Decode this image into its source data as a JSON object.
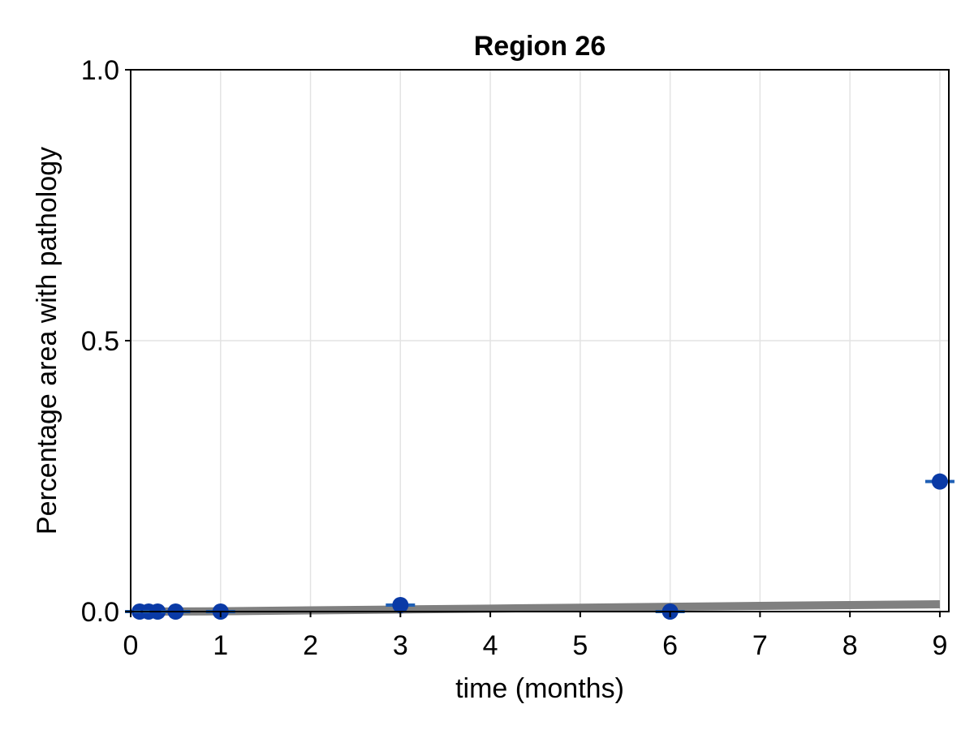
{
  "chart_data": {
    "type": "scatter",
    "title": "Region 26",
    "xlabel": "time (months)",
    "ylabel": "Percentage area with pathology",
    "xlim": [
      0,
      9.1
    ],
    "ylim": [
      0,
      1
    ],
    "x_ticks": [
      0,
      1,
      2,
      3,
      4,
      5,
      6,
      7,
      8,
      9
    ],
    "x_tick_labels": [
      "0",
      "1",
      "2",
      "3",
      "4",
      "5",
      "6",
      "7",
      "8",
      "9"
    ],
    "y_ticks": [
      0,
      0.5,
      1
    ],
    "y_tick_labels": [
      "0.0",
      "0.5",
      "1.0"
    ],
    "grid": true,
    "series": [
      {
        "kind": "points_with_error_bars",
        "color": "#0a3aa6",
        "errorbar_color": "#1f5fb5",
        "points": [
          {
            "x": 0.1,
            "y": 0.0
          },
          {
            "x": 0.2,
            "y": 0.0
          },
          {
            "x": 0.3,
            "y": 0.0
          },
          {
            "x": 0.5,
            "y": 0.0
          },
          {
            "x": 1.0,
            "y": 0.0
          },
          {
            "x": 3.0,
            "y": 0.012
          },
          {
            "x": 6.0,
            "y": 0.0
          },
          {
            "x": 9.0,
            "y": 0.24
          }
        ]
      },
      {
        "kind": "line",
        "color": "#808080",
        "x": [
          0.1,
          1,
          2,
          3,
          4,
          5,
          6,
          7,
          8,
          9
        ],
        "y": [
          0.0,
          0.0005,
          0.0022,
          0.0038,
          0.0055,
          0.0072,
          0.0088,
          0.0104,
          0.012,
          0.0135
        ]
      }
    ]
  }
}
